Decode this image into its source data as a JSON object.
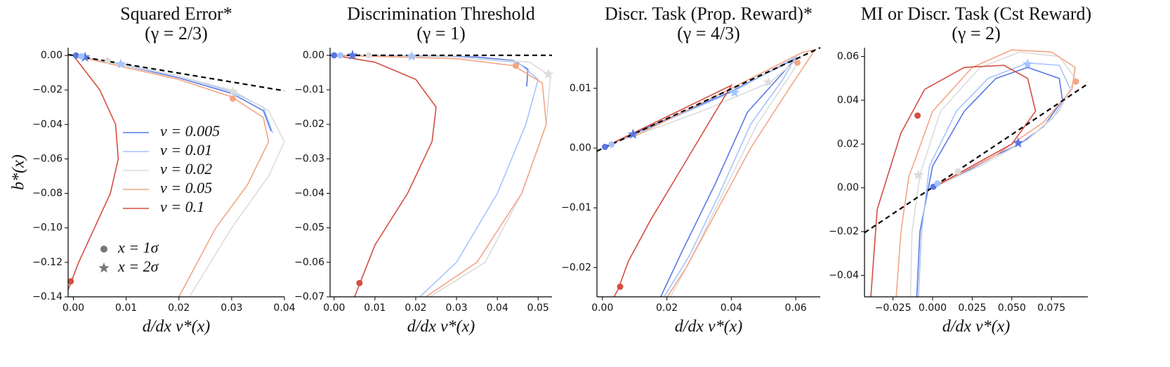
{
  "chart_data": [
    {
      "type": "line",
      "title": "Squared Error*",
      "subtitle": "(γ = 2/3)",
      "xlabel": "d/dx v*(x)",
      "ylabel": "b*(x)",
      "xlim": [
        -0.001,
        0.04
      ],
      "ylim": [
        -0.14,
        0.0045
      ],
      "xticks": [
        {
          "value": 0,
          "label": "0.00"
        },
        {
          "value": 0.01,
          "label": "0.01"
        },
        {
          "value": 0.02,
          "label": "0.02"
        },
        {
          "value": 0.03,
          "label": "0.03"
        },
        {
          "value": 0.04,
          "label": "0.04"
        }
      ],
      "yticks": [
        {
          "value": 0,
          "label": "0.00"
        },
        {
          "value": -0.02,
          "label": "−0.02"
        },
        {
          "value": -0.04,
          "label": "−0.04"
        },
        {
          "value": -0.06,
          "label": "−0.06"
        },
        {
          "value": -0.08,
          "label": "−0.08"
        },
        {
          "value": -0.1,
          "label": "−0.10"
        },
        {
          "value": -0.12,
          "label": "−0.12"
        },
        {
          "value": -0.14,
          "label": "−0.14"
        }
      ],
      "legend": true,
      "marker_legend": [
        "x = 1σ",
        "x = 2σ"
      ],
      "reference_line": {
        "x": [
          -0.001,
          0.04
        ],
        "y": [
          0.0005,
          -0.0205
        ]
      },
      "series": [
        {
          "name": "ν = 0.005",
          "color": "#5a78e4",
          "x": [
            0,
            0.002,
            0.01,
            0.02,
            0.03,
            0.036,
            0.0375
          ],
          "y": [
            0,
            -0.001,
            -0.006,
            -0.013,
            -0.022,
            -0.032,
            -0.044
          ],
          "sigma1": [
            0.0005,
            0
          ],
          "sigma2": [
            0.0022,
            -0.001
          ]
        },
        {
          "name": "ν = 0.01",
          "color": "#a5c4fe",
          "x": [
            0,
            0.01,
            0.02,
            0.03,
            0.036,
            0.0378
          ],
          "y": [
            0,
            -0.0055,
            -0.012,
            -0.021,
            -0.03,
            -0.045
          ],
          "sigma1": [
            0.0015,
            -0.0005
          ],
          "sigma2": [
            0.009,
            -0.005
          ]
        },
        {
          "name": "ν = 0.02",
          "color": "#dcdcdc",
          "x": [
            0,
            0.01,
            0.02,
            0.03,
            0.037,
            0.04,
            0.037,
            0.03,
            0.022
          ],
          "y": [
            0,
            -0.006,
            -0.012,
            -0.02,
            -0.032,
            -0.05,
            -0.07,
            -0.1,
            -0.14
          ],
          "sigma1": [
            0.0065,
            -0.003
          ],
          "sigma2": [
            0.0302,
            -0.021
          ]
        },
        {
          "name": "ν = 0.05",
          "color": "#f4a585",
          "x": [
            0,
            0.01,
            0.02,
            0.03,
            0.036,
            0.037,
            0.033,
            0.027,
            0.02
          ],
          "y": [
            0,
            -0.007,
            -0.014,
            -0.024,
            -0.036,
            -0.05,
            -0.075,
            -0.1,
            -0.14
          ],
          "sigma1": [
            0.0302,
            -0.025
          ]
        },
        {
          "name": "ν = 0.1",
          "color": "#d44e41",
          "x": [
            0,
            0.005,
            0.008,
            0.0085,
            0.007,
            0.004,
            0.001,
            -0.0015
          ],
          "y": [
            0,
            -0.02,
            -0.04,
            -0.06,
            -0.08,
            -0.1,
            -0.12,
            -0.14
          ],
          "sigma1": [
            -0.0005,
            -0.131
          ]
        }
      ]
    },
    {
      "type": "line",
      "title": "Discrimination Threshold",
      "subtitle": "(γ = 1)",
      "xlabel": "d/dx v*(x)",
      "xlim": [
        -0.001,
        0.0534
      ],
      "ylim": [
        -0.07,
        0.0022
      ],
      "xticks": [
        {
          "value": 0,
          "label": "0.00"
        },
        {
          "value": 0.01,
          "label": "0.01"
        },
        {
          "value": 0.02,
          "label": "0.02"
        },
        {
          "value": 0.03,
          "label": "0.03"
        },
        {
          "value": 0.04,
          "label": "0.04"
        },
        {
          "value": 0.05,
          "label": "0.05"
        }
      ],
      "yticks": [
        {
          "value": 0,
          "label": "0.00"
        },
        {
          "value": -0.01,
          "label": "−0.01"
        },
        {
          "value": -0.02,
          "label": "−0.02"
        },
        {
          "value": -0.03,
          "label": "−0.03"
        },
        {
          "value": -0.04,
          "label": "−0.04"
        },
        {
          "value": -0.05,
          "label": "−0.05"
        },
        {
          "value": -0.06,
          "label": "−0.06"
        },
        {
          "value": -0.07,
          "label": "−0.07"
        }
      ],
      "reference_line": {
        "x": [
          -0.001,
          0.0534
        ],
        "y": [
          0,
          0
        ]
      },
      "series": [
        {
          "color": "#5a78e4",
          "x": [
            0,
            0.02,
            0.035,
            0.044,
            0.0475,
            0.0472
          ],
          "y": [
            0,
            -0.0002,
            -0.0005,
            -0.0015,
            -0.004,
            -0.009
          ],
          "sigma1": [
            0,
            0
          ],
          "sigma2": [
            0.0045,
            0
          ]
        },
        {
          "color": "#a5c4fe",
          "x": [
            0,
            0.03,
            0.045,
            0.05,
            0.047,
            0.04,
            0.03,
            0.021
          ],
          "y": [
            0,
            -0.0005,
            -0.002,
            -0.007,
            -0.02,
            -0.04,
            -0.06,
            -0.07
          ],
          "sigma1": [
            0.0015,
            0
          ],
          "sigma2": [
            0.019,
            -0.0003
          ]
        },
        {
          "color": "#dcdcdc",
          "x": [
            0,
            0.03,
            0.048,
            0.053,
            0.052,
            0.046,
            0.037,
            0.0235
          ],
          "y": [
            0,
            -0.0005,
            -0.002,
            -0.006,
            -0.02,
            -0.04,
            -0.06,
            -0.07
          ],
          "sigma1": [
            0.0085,
            0
          ],
          "sigma2": [
            0.0525,
            -0.0055
          ]
        },
        {
          "color": "#f4a585",
          "x": [
            0,
            0.03,
            0.044,
            0.051,
            0.052,
            0.046,
            0.035,
            0.0225
          ],
          "y": [
            0,
            -0.001,
            -0.003,
            -0.008,
            -0.02,
            -0.04,
            -0.06,
            -0.07
          ],
          "sigma1": [
            0.0445,
            -0.003
          ]
        },
        {
          "color": "#d44e41",
          "x": [
            0,
            0.01,
            0.02,
            0.025,
            0.024,
            0.018,
            0.01,
            0.005
          ],
          "y": [
            0,
            -0.002,
            -0.007,
            -0.015,
            -0.025,
            -0.04,
            -0.055,
            -0.07
          ],
          "sigma1": [
            0.0062,
            -0.066
          ]
        }
      ]
    },
    {
      "type": "line",
      "title": "Discr. Task (Prop. Reward)*",
      "subtitle": "(γ = 4/3)",
      "xlabel": "d/dx v*(x)",
      "xlim": [
        -0.0017,
        0.0676
      ],
      "ylim": [
        -0.0249,
        0.0168
      ],
      "xticks": [
        {
          "value": 0,
          "label": "0.00"
        },
        {
          "value": 0.02,
          "label": "0.02"
        },
        {
          "value": 0.04,
          "label": "0.04"
        },
        {
          "value": 0.06,
          "label": "0.06"
        }
      ],
      "yticks": [
        {
          "value": 0.01,
          "label": "0.01"
        },
        {
          "value": 0,
          "label": "0.00"
        },
        {
          "value": -0.01,
          "label": "−0.01"
        },
        {
          "value": -0.02,
          "label": "−0.02"
        }
      ],
      "reference_line": {
        "x": [
          -0.0017,
          0.0676
        ],
        "y": [
          -0.0005,
          0.0168
        ]
      },
      "series": [
        {
          "color": "#5a78e4",
          "x": [
            0,
            0.01,
            0.04,
            0.06,
            0.055,
            0.045,
            0.035,
            0.025,
            0.018
          ],
          "y": [
            0,
            0.0025,
            0.0095,
            0.015,
            0.012,
            0.006,
            -0.006,
            -0.017,
            -0.025
          ],
          "sigma1": [
            0.0008,
            0.0002
          ],
          "sigma2": [
            0.0095,
            0.0023
          ]
        },
        {
          "color": "#a5c4fe",
          "x": [
            0,
            0.04,
            0.06,
            0.056,
            0.046,
            0.036,
            0.027,
            0.019
          ],
          "y": [
            0,
            0.0093,
            0.0152,
            0.0115,
            0.004,
            -0.008,
            -0.018,
            -0.025
          ],
          "sigma1": [
            0.0028,
            0.0006
          ],
          "sigma2": [
            0.041,
            0.0093
          ]
        },
        {
          "color": "#dcdcdc",
          "x": [
            0.002,
            0.03,
            0.052,
            0.062,
            0.058,
            0.048,
            0.037,
            0.028,
            0.021
          ],
          "y": [
            0.0005,
            0.006,
            0.011,
            0.0155,
            0.012,
            0.004,
            -0.008,
            -0.018,
            -0.025
          ],
          "sigma2": [
            0.0515,
            0.011
          ]
        },
        {
          "color": "#f4a585",
          "x": [
            0.01,
            0.04,
            0.062,
            0.066,
            0.058,
            0.046,
            0.036,
            0.026,
            0.02
          ],
          "y": [
            0.002,
            0.01,
            0.016,
            0.0165,
            0.01,
            0,
            -0.01,
            -0.02,
            -0.025
          ],
          "sigma1": [
            0.0605,
            0.0143
          ]
        },
        {
          "color": "#d44e41",
          "x": [
            0,
            0.04,
            0.035,
            0.025,
            0.015,
            0.008,
            0.005,
            0.0035
          ],
          "y": [
            0,
            0.0105,
            0.006,
            -0.003,
            -0.012,
            -0.019,
            -0.0235,
            -0.025
          ],
          "sigma1": [
            0.0055,
            -0.0232
          ]
        }
      ]
    },
    {
      "type": "line",
      "title": "MI or Discr. Task (Cst Reward)",
      "subtitle": "(γ = 2)",
      "xlabel": "d/dx v*(x)",
      "xlim": [
        -0.043,
        0.098
      ],
      "ylim": [
        -0.0498,
        0.064
      ],
      "xticks": [
        {
          "value": -0.025,
          "label": "−0.025"
        },
        {
          "value": 0,
          "label": "0.000"
        },
        {
          "value": 0.025,
          "label": "0.025"
        },
        {
          "value": 0.05,
          "label": "0.050"
        },
        {
          "value": 0.075,
          "label": "0.075"
        }
      ],
      "yticks": [
        {
          "value": -0.04,
          "label": "−0.04"
        },
        {
          "value": -0.02,
          "label": "−0.02"
        },
        {
          "value": 0,
          "label": "0.00"
        },
        {
          "value": 0.02,
          "label": "0.02"
        },
        {
          "value": 0.04,
          "label": "0.04"
        },
        {
          "value": 0.06,
          "label": "0.06"
        }
      ],
      "reference_line": {
        "x": [
          -0.043,
          0.098
        ],
        "y": [
          -0.0205,
          0.0475
        ]
      },
      "series": [
        {
          "color": "#5a78e4",
          "x": [
            0,
            0.02,
            0.04,
            0.055,
            0.07,
            0.082,
            0.08,
            0.06,
            0.04,
            0.02,
            0,
            -0.008,
            -0.01
          ],
          "y": [
            0,
            0.007,
            0.015,
            0.02,
            0.028,
            0.04,
            0.05,
            0.055,
            0.05,
            0.035,
            0.01,
            -0.02,
            -0.05
          ],
          "sigma1": [
            0.0005,
            0.0005
          ],
          "sigma2": [
            0.054,
            0.0205
          ]
        },
        {
          "color": "#a5c4fe",
          "x": [
            0,
            0.03,
            0.06,
            0.076,
            0.087,
            0.08,
            0.06,
            0.035,
            0.015,
            -0.002,
            -0.007,
            -0.009
          ],
          "y": [
            0,
            0.01,
            0.022,
            0.032,
            0.045,
            0.056,
            0.057,
            0.05,
            0.035,
            0.01,
            -0.02,
            -0.05
          ],
          "sigma1": [
            0.003,
            0.002
          ],
          "sigma2": [
            0.06,
            0.0565
          ]
        },
        {
          "color": "#dcdcdc",
          "x": [
            0,
            0.03,
            0.06,
            0.08,
            0.09,
            0.08,
            0.055,
            0.03,
            0.005,
            -0.008,
            -0.013,
            -0.014
          ],
          "y": [
            0,
            0.01,
            0.022,
            0.035,
            0.05,
            0.06,
            0.062,
            0.055,
            0.035,
            0.006,
            -0.02,
            -0.05
          ],
          "sigma1": [
            0.016,
            0.0075
          ],
          "sigma2": [
            -0.009,
            0.0058
          ]
        },
        {
          "color": "#f4a585",
          "x": [
            0,
            0.04,
            0.07,
            0.088,
            0.09,
            0.075,
            0.05,
            0.025,
            0,
            -0.015,
            -0.02,
            -0.023
          ],
          "y": [
            0,
            0.015,
            0.03,
            0.045,
            0.055,
            0.062,
            0.063,
            0.055,
            0.035,
            0.005,
            -0.02,
            -0.05
          ],
          "sigma1": [
            0.0905,
            0.0485
          ]
        },
        {
          "color": "#d44e41",
          "x": [
            0,
            0.03,
            0.05,
            0.065,
            0.06,
            0.045,
            0.02,
            -0.005,
            -0.02,
            -0.035,
            -0.039
          ],
          "y": [
            0,
            0.012,
            0.02,
            0.035,
            0.05,
            0.056,
            0.055,
            0.045,
            0.025,
            -0.01,
            -0.05
          ],
          "sigma1": [
            -0.0095,
            0.033
          ]
        }
      ]
    }
  ]
}
